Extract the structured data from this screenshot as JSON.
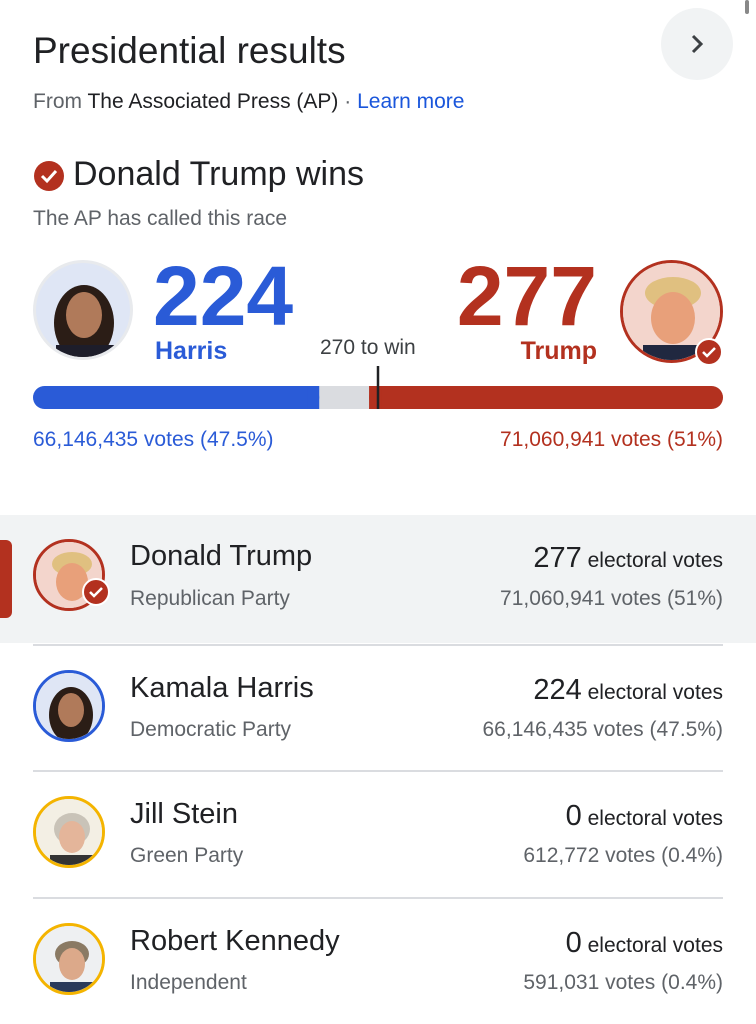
{
  "header": {
    "title": "Presidential results",
    "source_prefix": "From",
    "source": "The Associated Press (AP)",
    "separator": "·",
    "learn_more": "Learn more"
  },
  "winner": {
    "headline": "Donald Trump wins",
    "subtitle": "The AP has called this race"
  },
  "tally": {
    "left": {
      "name": "Harris",
      "electoral": 224,
      "votes": "66,146,435 votes (47.5%)"
    },
    "right": {
      "name": "Trump",
      "electoral": 277,
      "votes": "71,060,941 votes (51%)"
    },
    "threshold": {
      "value": 270,
      "label": "270 to win"
    }
  },
  "candidates": [
    {
      "name": "Donald Trump",
      "party": "Republican Party",
      "electoral": 277,
      "electoral_label": "electoral votes",
      "votes": "71,060,941 votes (51%)"
    },
    {
      "name": "Kamala Harris",
      "party": "Democratic Party",
      "electoral": 224,
      "electoral_label": "electoral votes",
      "votes": "66,146,435 votes (47.5%)"
    },
    {
      "name": "Jill Stein",
      "party": "Green Party",
      "electoral": 0,
      "electoral_label": "electoral votes",
      "votes": "612,772 votes (0.4%)"
    },
    {
      "name": "Robert Kennedy",
      "party": "Independent",
      "electoral": 0,
      "electoral_label": "electoral votes",
      "votes": "591,031 votes (0.4%)"
    }
  ]
}
